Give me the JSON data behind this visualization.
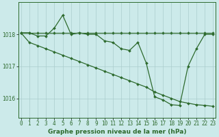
{
  "xlabel": "Graphe pression niveau de la mer (hPa)",
  "x": [
    0,
    1,
    2,
    3,
    4,
    5,
    6,
    7,
    8,
    9,
    10,
    11,
    12,
    13,
    14,
    15,
    16,
    17,
    18,
    19,
    20,
    21,
    22,
    23
  ],
  "line1": [
    1018.05,
    1018.05,
    1017.95,
    1017.95,
    1018.2,
    1018.6,
    1018.0,
    1018.05,
    1018.0,
    1018.0,
    1017.8,
    1017.75,
    1017.55,
    1017.5,
    1017.75,
    1017.1,
    1016.05,
    1015.95,
    1015.8,
    1015.78,
    1017.0,
    1017.55,
    1018.0,
    1018.0
  ],
  "line2": [
    1018.05,
    1017.75,
    1017.65,
    1017.55,
    1017.45,
    1017.35,
    1017.25,
    1017.15,
    1017.05,
    1016.95,
    1016.85,
    1016.75,
    1016.65,
    1016.55,
    1016.45,
    1016.35,
    1016.2,
    1016.1,
    1016.0,
    1015.9,
    1015.85,
    1015.8,
    1015.78,
    1015.75
  ],
  "line3": [
    1018.05,
    1018.05,
    1018.05,
    1018.05,
    1018.05,
    1018.05,
    1018.05,
    1018.05,
    1018.05,
    1018.05,
    1018.05,
    1018.05,
    1018.05,
    1018.05,
    1018.05,
    1018.05,
    1018.05,
    1018.05,
    1018.05,
    1018.05,
    1018.05,
    1018.05,
    1018.05,
    1018.05
  ],
  "line_color": "#2d6a2d",
  "bg_color": "#cceaea",
  "grid_color": "#aacccc",
  "ylim": [
    1015.4,
    1019.0
  ],
  "yticks": [
    1016,
    1017,
    1018
  ],
  "xlim": [
    -0.3,
    23.3
  ],
  "marker": "D",
  "markersize": 2.0,
  "linewidth": 0.9,
  "label_fontsize": 6.5,
  "tick_fontsize": 5.5
}
